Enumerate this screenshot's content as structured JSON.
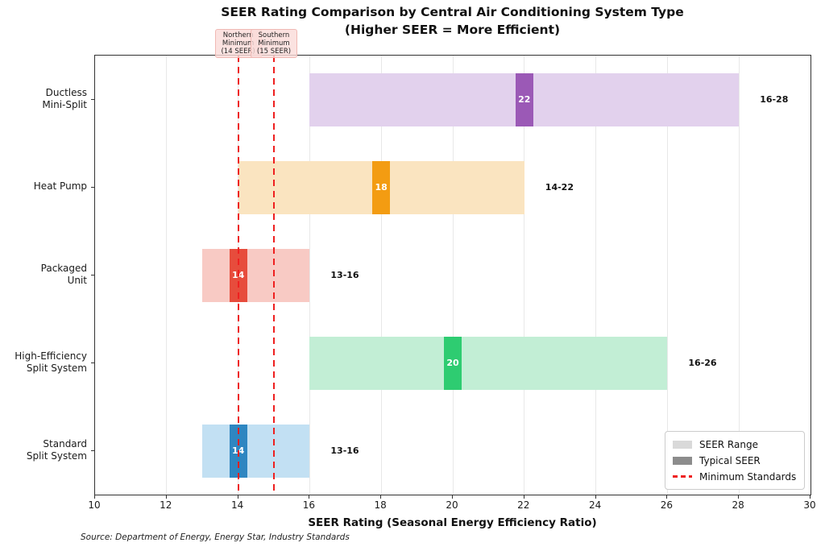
{
  "chart_data": {
    "type": "bar",
    "orientation": "horizontal",
    "title": "SEER Rating Comparison by Central Air Conditioning System Type",
    "subtitle": "(Higher SEER = More Efficient)",
    "xlabel": "SEER Rating (Seasonal Energy Efficiency Ratio)",
    "source_note": "Source: Department of Energy, Energy Star, Industry Standards",
    "xlim": [
      10,
      30
    ],
    "xticks": [
      10,
      12,
      14,
      16,
      18,
      20,
      22,
      24,
      26,
      28,
      30
    ],
    "grid": "vertical-light",
    "frame_color": "#333333",
    "systems": [
      {
        "name": "Ductless Mini-Split",
        "label_lines": [
          "Ductless",
          "Mini-Split"
        ],
        "range": [
          16,
          28
        ],
        "typical": 22,
        "range_label": "16-28",
        "range_color": "#e2d1ed",
        "typical_color": "#9b59b6"
      },
      {
        "name": "Heat Pump",
        "label_lines": [
          "Heat Pump"
        ],
        "range": [
          14,
          22
        ],
        "typical": 18,
        "range_label": "14-22",
        "range_color": "#fae4c0",
        "typical_color": "#f39c12"
      },
      {
        "name": "Packaged Unit",
        "label_lines": [
          "Packaged",
          "Unit"
        ],
        "range": [
          13,
          16
        ],
        "typical": 14,
        "range_label": "13-16",
        "range_color": "#f8cac4",
        "typical_color": "#e74c3c"
      },
      {
        "name": "High-Efficiency Split System",
        "label_lines": [
          "High-Efficiency",
          "Split System"
        ],
        "range": [
          16,
          26
        ],
        "typical": 20,
        "range_label": "16-26",
        "range_color": "#c2eed5",
        "typical_color": "#2ecc71"
      },
      {
        "name": "Standard Split System",
        "label_lines": [
          "Standard",
          "Split System"
        ],
        "range": [
          13,
          16
        ],
        "typical": 14,
        "range_label": "13-16",
        "range_color": "#c2e0f3",
        "typical_color": "#2e86c1"
      }
    ],
    "min_standards": [
      {
        "value": 14,
        "label_lines": [
          "Northern",
          "Minimum",
          "(14 SEER)"
        ]
      },
      {
        "value": 15,
        "label_lines": [
          "Southern",
          "Minimum",
          "(15 SEER)"
        ]
      }
    ],
    "standard_line_color": "#ee2020",
    "legend": {
      "position": "lower-right",
      "items": [
        {
          "label": "SEER Range",
          "swatch_color": "#d9d9d9",
          "swatch_type": "box"
        },
        {
          "label": "Typical SEER",
          "swatch_color": "#8c8c8c",
          "swatch_type": "box"
        },
        {
          "label": "Minimum Standards",
          "swatch_color": "#ee2020",
          "swatch_type": "dashed-line"
        }
      ]
    }
  }
}
